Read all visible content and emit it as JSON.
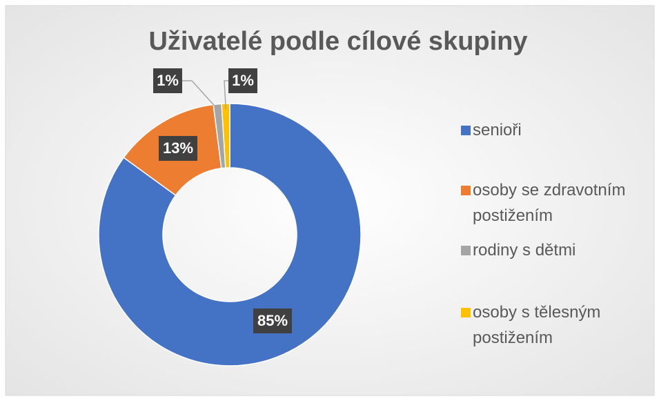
{
  "chart_data": {
    "type": "donut",
    "title": "Uživatelé podle cílové skupiny",
    "categories": [
      "senioři",
      "osoby se zdravotním postižením",
      "rodiny s dětmi",
      "osoby s tělesným postižením"
    ],
    "values": [
      85,
      13,
      1,
      1
    ],
    "value_labels": [
      "85%",
      "13%",
      "1%",
      "1%"
    ],
    "colors": [
      "#4472c4",
      "#ed7d31",
      "#a5a5a5",
      "#ffc000"
    ],
    "legend": "right"
  }
}
